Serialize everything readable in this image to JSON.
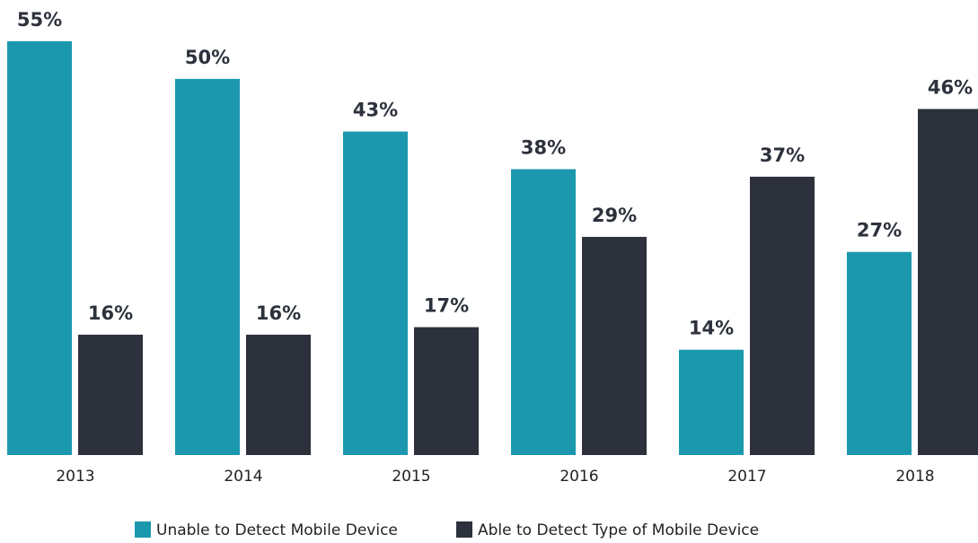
{
  "chart_data": {
    "type": "bar",
    "categories": [
      "2013",
      "2014",
      "2015",
      "2016",
      "2017",
      "2018"
    ],
    "series": [
      {
        "name": "Unable to Detect Mobile Device",
        "color": "#1b98ad",
        "values": [
          55,
          50,
          43,
          38,
          14,
          27
        ],
        "value_labels": [
          "55%",
          "50%",
          "43%",
          "38%",
          "14%",
          "27%"
        ]
      },
      {
        "name": "Able to Detect Type of Mobile Device",
        "color": "#2c313c",
        "values": [
          16,
          16,
          17,
          29,
          37,
          46
        ],
        "value_labels": [
          "16%",
          "16%",
          "17%",
          "29%",
          "37%",
          "46%"
        ]
      }
    ],
    "legend": "bottom"
  }
}
